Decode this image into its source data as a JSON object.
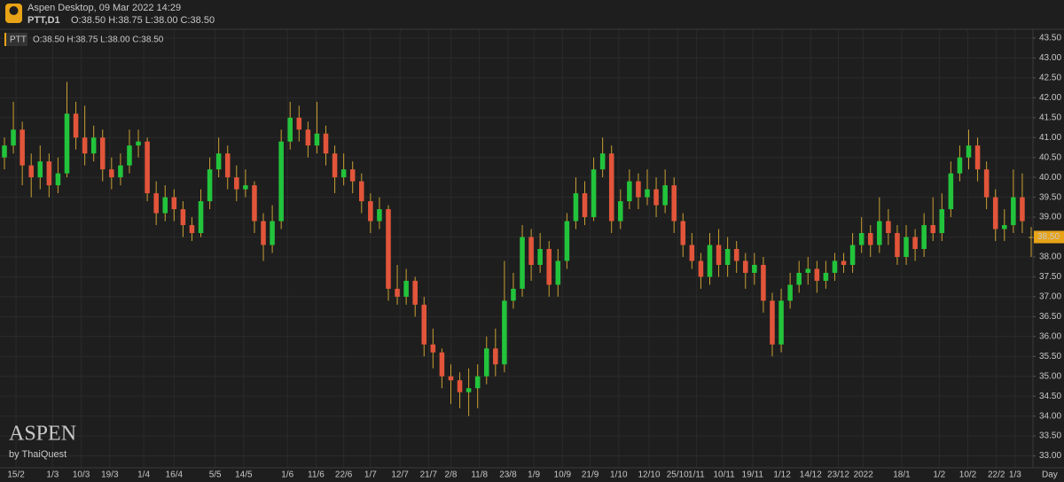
{
  "header": {
    "app": "Aspen Desktop, 09 Mar 2022 14:29",
    "symbol": "PTT,D1",
    "ohlc": "O:38.50 H:38.75 L:38.00 C:38.50"
  },
  "watermark": {
    "brand": "ASPEN",
    "by": "by ThaiQuest"
  },
  "chart_data": {
    "type": "candlestick",
    "legend_symbol": "PTT",
    "legend": "O:38.50 H:38.75 L:38.00 C:38.50",
    "period": "Day",
    "price_tag": {
      "value": 38.5,
      "label": "38.50"
    },
    "up_color": "#22c43c",
    "down_color": "#e2553a",
    "wick_color": "#c9a032",
    "grid": true,
    "ylim": [
      32.7,
      43.7
    ],
    "yticks": [
      {
        "value": 33,
        "label": "33.00"
      },
      {
        "value": 33.5,
        "label": "33.50"
      },
      {
        "value": 34,
        "label": "34.00"
      },
      {
        "value": 34.5,
        "label": "34.50"
      },
      {
        "value": 35,
        "label": "35.00"
      },
      {
        "value": 35.5,
        "label": "35.50"
      },
      {
        "value": 36,
        "label": "36.00"
      },
      {
        "value": 36.5,
        "label": "36.50"
      },
      {
        "value": 37,
        "label": "37.00"
      },
      {
        "value": 37.5,
        "label": "37.50"
      },
      {
        "value": 38,
        "label": "38.00"
      },
      {
        "value": 38.5,
        "label": "38.50"
      },
      {
        "value": 39,
        "label": "39.00"
      },
      {
        "value": 39.5,
        "label": "39.50"
      },
      {
        "value": 40,
        "label": "40.00"
      },
      {
        "value": 40.5,
        "label": "40.50"
      },
      {
        "value": 41,
        "label": "41.00"
      },
      {
        "value": 41.5,
        "label": "41.50"
      },
      {
        "value": 42,
        "label": "42.00"
      },
      {
        "value": 42.5,
        "label": "42.50"
      },
      {
        "value": 43,
        "label": "43.00"
      },
      {
        "value": 43.5,
        "label": "43.50"
      }
    ],
    "xticks": [
      {
        "value": 1.3,
        "label": "15/2"
      },
      {
        "value": 5.4,
        "label": "1/3"
      },
      {
        "value": 8.6,
        "label": "10/3"
      },
      {
        "value": 11.8,
        "label": "19/3"
      },
      {
        "value": 15.6,
        "label": "1/4"
      },
      {
        "value": 19,
        "label": "16/4"
      },
      {
        "value": 23.6,
        "label": "5/5"
      },
      {
        "value": 26.8,
        "label": "14/5"
      },
      {
        "value": 31.7,
        "label": "1/6"
      },
      {
        "value": 34.9,
        "label": "11/6"
      },
      {
        "value": 38,
        "label": "22/6"
      },
      {
        "value": 41,
        "label": "1/7"
      },
      {
        "value": 44.3,
        "label": "12/7"
      },
      {
        "value": 47.5,
        "label": "21/7"
      },
      {
        "value": 50,
        "label": "2/8"
      },
      {
        "value": 53.2,
        "label": "11/8"
      },
      {
        "value": 56.4,
        "label": "23/8"
      },
      {
        "value": 59.3,
        "label": "1/9"
      },
      {
        "value": 62.5,
        "label": "10/9"
      },
      {
        "value": 65.6,
        "label": "21/9"
      },
      {
        "value": 68.8,
        "label": "1/10"
      },
      {
        "value": 72.2,
        "label": "12/10"
      },
      {
        "value": 75.4,
        "label": "25/10"
      },
      {
        "value": 77.5,
        "label": "1/11"
      },
      {
        "value": 80.6,
        "label": "10/11"
      },
      {
        "value": 83.8,
        "label": "19/11"
      },
      {
        "value": 87.1,
        "label": "1/12"
      },
      {
        "value": 90.3,
        "label": "14/12"
      },
      {
        "value": 93.4,
        "label": "23/12"
      },
      {
        "value": 96.2,
        "label": "2022"
      },
      {
        "value": 100.5,
        "label": "18/1"
      },
      {
        "value": 104.7,
        "label": "1/2"
      },
      {
        "value": 107.9,
        "label": "10/2"
      },
      {
        "value": 111.1,
        "label": "22/2"
      },
      {
        "value": 113.2,
        "label": "1/3"
      }
    ],
    "ohlc": [
      [
        40.5,
        41.0,
        40.2,
        40.8
      ],
      [
        40.8,
        41.9,
        40.6,
        41.2
      ],
      [
        41.2,
        41.4,
        39.8,
        40.3
      ],
      [
        40.3,
        40.6,
        39.5,
        40.0
      ],
      [
        40.0,
        40.8,
        39.7,
        40.4
      ],
      [
        40.4,
        40.6,
        39.5,
        39.8
      ],
      [
        39.8,
        40.5,
        39.6,
        40.1
      ],
      [
        40.1,
        42.4,
        40.0,
        41.6
      ],
      [
        41.6,
        41.9,
        40.7,
        41.0
      ],
      [
        41.0,
        41.8,
        40.3,
        40.6
      ],
      [
        40.6,
        41.3,
        40.4,
        41.0
      ],
      [
        41.0,
        41.2,
        39.9,
        40.2
      ],
      [
        40.2,
        40.5,
        39.7,
        40.0
      ],
      [
        40.0,
        40.6,
        39.8,
        40.3
      ],
      [
        40.3,
        41.2,
        40.1,
        40.8
      ],
      [
        40.8,
        41.2,
        40.5,
        40.9
      ],
      [
        40.9,
        41.0,
        39.4,
        39.6
      ],
      [
        39.6,
        39.9,
        38.8,
        39.1
      ],
      [
        39.1,
        39.8,
        38.9,
        39.5
      ],
      [
        39.5,
        39.7,
        38.9,
        39.2
      ],
      [
        39.2,
        39.4,
        38.5,
        38.8
      ],
      [
        38.8,
        39.0,
        38.4,
        38.6
      ],
      [
        38.6,
        39.7,
        38.5,
        39.4
      ],
      [
        39.4,
        40.5,
        39.2,
        40.2
      ],
      [
        40.2,
        41.0,
        40.0,
        40.6
      ],
      [
        40.6,
        40.8,
        39.7,
        40.0
      ],
      [
        40.0,
        40.3,
        39.4,
        39.7
      ],
      [
        39.7,
        40.2,
        39.5,
        39.8
      ],
      [
        39.8,
        39.9,
        38.6,
        38.9
      ],
      [
        38.9,
        39.1,
        37.9,
        38.3
      ],
      [
        38.3,
        39.3,
        38.1,
        38.9
      ],
      [
        38.9,
        41.2,
        38.7,
        40.9
      ],
      [
        40.9,
        41.9,
        40.7,
        41.5
      ],
      [
        41.5,
        41.8,
        40.9,
        41.2
      ],
      [
        41.2,
        41.4,
        40.5,
        40.8
      ],
      [
        40.8,
        41.9,
        40.6,
        41.1
      ],
      [
        41.1,
        41.3,
        40.3,
        40.6
      ],
      [
        40.6,
        40.8,
        39.6,
        40.0
      ],
      [
        40.0,
        40.6,
        39.8,
        40.2
      ],
      [
        40.2,
        40.4,
        39.6,
        39.9
      ],
      [
        39.9,
        40.1,
        39.1,
        39.4
      ],
      [
        39.4,
        39.6,
        38.6,
        38.9
      ],
      [
        38.9,
        39.5,
        38.7,
        39.2
      ],
      [
        39.2,
        39.3,
        36.9,
        37.2
      ],
      [
        37.2,
        37.8,
        36.8,
        37.0
      ],
      [
        37.0,
        37.7,
        36.8,
        37.4
      ],
      [
        37.4,
        37.5,
        36.5,
        36.8
      ],
      [
        36.8,
        37.0,
        35.5,
        35.8
      ],
      [
        35.8,
        36.2,
        35.2,
        35.6
      ],
      [
        35.6,
        35.7,
        34.7,
        35.0
      ],
      [
        35.0,
        35.3,
        34.3,
        34.9
      ],
      [
        34.9,
        35.1,
        34.2,
        34.6
      ],
      [
        34.6,
        35.2,
        34.0,
        34.7
      ],
      [
        34.7,
        35.3,
        34.2,
        35.0
      ],
      [
        35.0,
        36.0,
        34.8,
        35.7
      ],
      [
        35.7,
        36.2,
        35.0,
        35.3
      ],
      [
        35.3,
        37.9,
        35.1,
        36.9
      ],
      [
        36.9,
        37.6,
        36.7,
        37.2
      ],
      [
        37.2,
        38.8,
        37.0,
        38.5
      ],
      [
        38.5,
        38.7,
        37.4,
        37.8
      ],
      [
        37.8,
        38.6,
        37.6,
        38.2
      ],
      [
        38.2,
        38.4,
        37.0,
        37.3
      ],
      [
        37.3,
        38.2,
        37.0,
        37.9
      ],
      [
        37.9,
        39.1,
        37.7,
        38.9
      ],
      [
        38.9,
        40.0,
        38.7,
        39.6
      ],
      [
        39.6,
        39.9,
        38.8,
        39.0
      ],
      [
        39.0,
        40.5,
        38.9,
        40.2
      ],
      [
        40.2,
        41.0,
        40.0,
        40.6
      ],
      [
        40.6,
        40.8,
        38.6,
        38.9
      ],
      [
        38.9,
        39.7,
        38.7,
        39.4
      ],
      [
        39.4,
        40.2,
        39.2,
        39.9
      ],
      [
        39.9,
        40.1,
        39.2,
        39.5
      ],
      [
        39.5,
        40.2,
        39.3,
        39.7
      ],
      [
        39.7,
        40.0,
        39.0,
        39.3
      ],
      [
        39.3,
        40.2,
        39.1,
        39.8
      ],
      [
        39.8,
        40.0,
        38.6,
        38.9
      ],
      [
        38.9,
        39.1,
        38.0,
        38.3
      ],
      [
        38.3,
        38.6,
        37.7,
        37.9
      ],
      [
        37.9,
        38.1,
        37.2,
        37.5
      ],
      [
        37.5,
        38.6,
        37.3,
        38.3
      ],
      [
        38.3,
        38.7,
        37.5,
        37.8
      ],
      [
        37.8,
        38.5,
        37.5,
        38.2
      ],
      [
        38.2,
        38.4,
        37.6,
        37.9
      ],
      [
        37.9,
        38.1,
        37.2,
        37.6
      ],
      [
        37.6,
        38.1,
        37.3,
        37.8
      ],
      [
        37.8,
        38.0,
        36.6,
        36.9
      ],
      [
        36.9,
        37.1,
        35.5,
        35.8
      ],
      [
        35.8,
        37.2,
        35.6,
        36.9
      ],
      [
        36.9,
        37.6,
        36.7,
        37.3
      ],
      [
        37.3,
        37.9,
        37.1,
        37.6
      ],
      [
        37.6,
        38.0,
        37.3,
        37.7
      ],
      [
        37.7,
        37.9,
        37.1,
        37.4
      ],
      [
        37.4,
        37.9,
        37.2,
        37.6
      ],
      [
        37.6,
        38.1,
        37.4,
        37.9
      ],
      [
        37.9,
        38.1,
        37.6,
        37.8
      ],
      [
        37.8,
        38.6,
        37.6,
        38.3
      ],
      [
        38.3,
        39.0,
        38.1,
        38.6
      ],
      [
        38.6,
        38.8,
        38.0,
        38.3
      ],
      [
        38.3,
        39.5,
        38.1,
        38.9
      ],
      [
        38.9,
        39.2,
        38.3,
        38.6
      ],
      [
        38.6,
        38.8,
        37.8,
        38.0
      ],
      [
        38.0,
        38.8,
        37.8,
        38.5
      ],
      [
        38.5,
        38.7,
        37.9,
        38.2
      ],
      [
        38.2,
        39.1,
        38.0,
        38.8
      ],
      [
        38.8,
        39.5,
        38.4,
        38.6
      ],
      [
        38.6,
        39.6,
        38.4,
        39.2
      ],
      [
        39.2,
        40.4,
        39.0,
        40.1
      ],
      [
        40.1,
        40.8,
        39.9,
        40.5
      ],
      [
        40.5,
        41.2,
        40.2,
        40.8
      ],
      [
        40.8,
        41.0,
        39.9,
        40.2
      ],
      [
        40.2,
        40.4,
        39.2,
        39.5
      ],
      [
        39.5,
        39.7,
        38.4,
        38.7
      ],
      [
        38.7,
        39.2,
        38.4,
        38.8
      ],
      [
        38.8,
        40.2,
        38.6,
        39.5
      ],
      [
        39.5,
        40.1,
        38.6,
        38.9
      ],
      [
        38.5,
        38.75,
        38.0,
        38.5
      ]
    ]
  }
}
